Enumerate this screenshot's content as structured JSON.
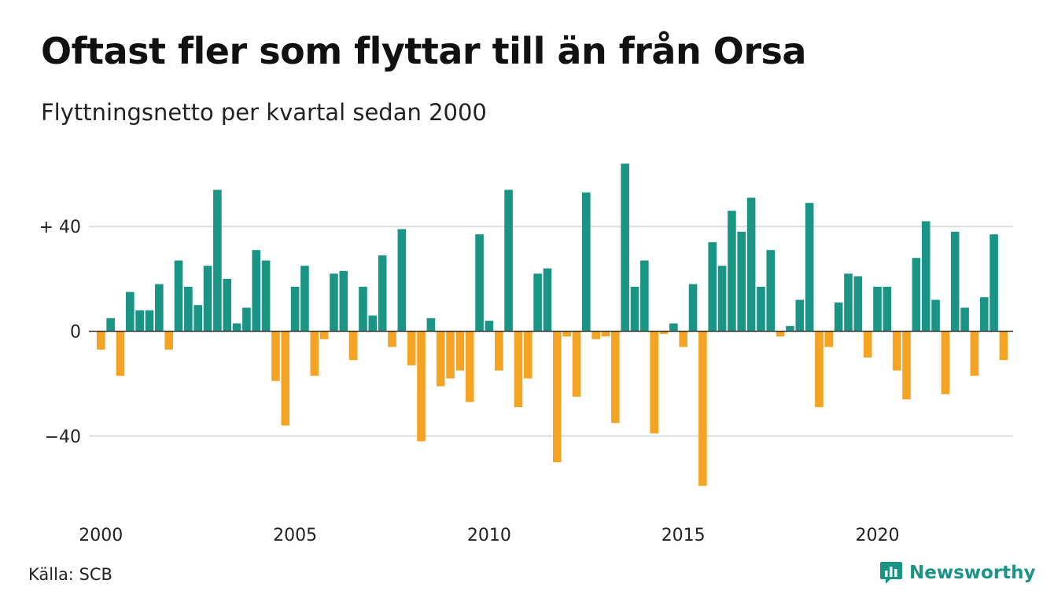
{
  "title": "Oftast fler som flyttar till än från Orsa",
  "subtitle": "Flyttningsnetto per kvartal sedan 2000",
  "source": "Källa: SCB",
  "brand": {
    "name": "Newsworthy",
    "icon": "chart-bubble-icon"
  },
  "colors": {
    "positive": "#1a9484",
    "negative": "#f5a322",
    "grid": "#dddddd",
    "zero_line": "#333333",
    "brand": "#1a9484"
  },
  "chart_data": {
    "type": "bar",
    "title": "Oftast fler som flyttar till än från Orsa",
    "subtitle": "Flyttningsnetto per kvartal sedan 2000",
    "xlabel": "",
    "ylabel": "",
    "ylim": [
      -62,
      66
    ],
    "xlim": [
      2000,
      2023.75
    ],
    "grid": true,
    "legend": "none",
    "y_ticks": [
      {
        "value": 40,
        "label": "+ 40"
      },
      {
        "value": 0,
        "label": "0"
      },
      {
        "value": -40,
        "label": "−40"
      }
    ],
    "x_ticks": [
      {
        "value": 2000,
        "label": "2000"
      },
      {
        "value": 2005,
        "label": "2005"
      },
      {
        "value": 2010,
        "label": "2010"
      },
      {
        "value": 2015,
        "label": "2015"
      },
      {
        "value": 2020,
        "label": "2020"
      }
    ],
    "start_year": 2000,
    "quarters_per_year": 4,
    "values": [
      -7,
      5,
      -17,
      15,
      8,
      8,
      18,
      -7,
      27,
      17,
      10,
      25,
      54,
      20,
      3,
      9,
      31,
      27,
      -19,
      -36,
      17,
      25,
      -17,
      -3,
      22,
      23,
      -11,
      17,
      6,
      29,
      -6,
      39,
      -13,
      -42,
      5,
      -21,
      -18,
      -15,
      -27,
      37,
      4,
      -15,
      54,
      -29,
      -18,
      22,
      24,
      -50,
      -2,
      -25,
      53,
      -3,
      -2,
      -35,
      64,
      17,
      27,
      -39,
      -1,
      3,
      -6,
      18,
      -59,
      34,
      25,
      46,
      38,
      51,
      17,
      31,
      -2,
      2,
      12,
      49,
      -29,
      -6,
      11,
      22,
      21,
      -10,
      17,
      17,
      -15,
      -26,
      28,
      42,
      12,
      -24,
      38,
      9,
      -17,
      13,
      37,
      -11
    ]
  }
}
